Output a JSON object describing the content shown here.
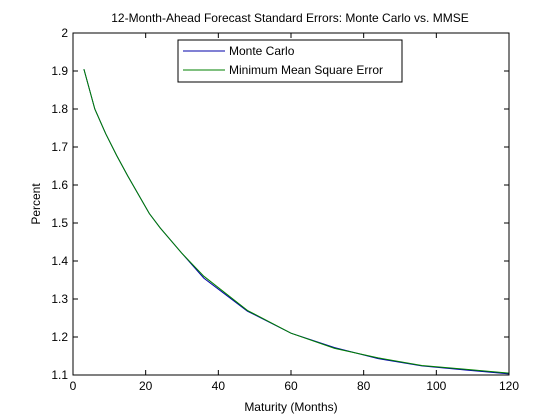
{
  "chart_data": {
    "type": "line",
    "title": "12-Month-Ahead Forecast Standard Errors: Monte Carlo vs. MMSE",
    "xlabel": "Maturity (Months)",
    "ylabel": "Percent",
    "xlim": [
      0,
      120
    ],
    "ylim": [
      1.1,
      2.0
    ],
    "xticks": [
      0,
      20,
      40,
      60,
      80,
      100,
      120
    ],
    "yticks": [
      1.1,
      1.2,
      1.3,
      1.4,
      1.5,
      1.6,
      1.7,
      1.8,
      1.9,
      2.0
    ],
    "xtick_labels": [
      "0",
      "20",
      "40",
      "60",
      "80",
      "100",
      "120"
    ],
    "ytick_labels": [
      "1.1",
      "1.2",
      "1.3",
      "1.4",
      "1.5",
      "1.6",
      "1.7",
      "1.8",
      "1.9",
      "2"
    ],
    "grid": false,
    "legend_position": "top-center",
    "x": [
      3,
      6,
      9,
      12,
      15,
      18,
      21,
      24,
      30,
      36,
      48,
      60,
      72,
      84,
      96,
      108,
      120
    ],
    "series": [
      {
        "name": "Monte Carlo",
        "color": "#0000aa",
        "values": [
          1.905,
          1.8,
          1.735,
          1.678,
          1.625,
          1.575,
          1.525,
          1.487,
          1.42,
          1.355,
          1.268,
          1.21,
          1.172,
          1.143,
          1.124,
          1.113,
          1.103
        ]
      },
      {
        "name": "Minimum Mean Square Error",
        "color": "#008000",
        "values": [
          1.905,
          1.8,
          1.735,
          1.678,
          1.625,
          1.575,
          1.525,
          1.487,
          1.42,
          1.36,
          1.27,
          1.21,
          1.17,
          1.145,
          1.125,
          1.115,
          1.105
        ]
      }
    ]
  }
}
